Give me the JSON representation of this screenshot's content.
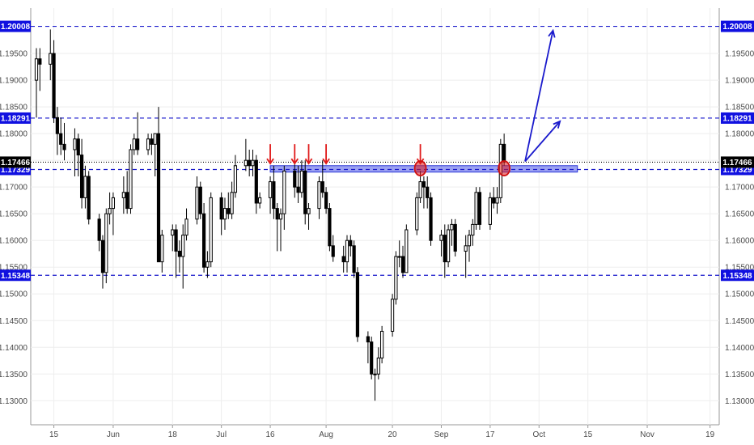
{
  "chart_data": {
    "type": "candlestick",
    "title": "",
    "y_range": [
      1.1255,
      1.2035
    ],
    "x_range_days": [
      "2018-05-10",
      "2018-11-20"
    ],
    "y_ticks": [
      "1.13000",
      "1.13500",
      "1.14000",
      "1.14500",
      "1.15000",
      "1.15500",
      "1.16000",
      "1.16500",
      "1.17000",
      "1.17500",
      "1.18000",
      "1.18500",
      "1.19000",
      "1.19500"
    ],
    "x_ticks": [
      {
        "label": "15",
        "date": "2018-05-15"
      },
      {
        "label": "Jun",
        "date": "2018-06-01"
      },
      {
        "label": "18",
        "date": "2018-06-18"
      },
      {
        "label": "Jul",
        "date": "2018-07-02"
      },
      {
        "label": "16",
        "date": "2018-07-16"
      },
      {
        "label": "Aug",
        "date": "2018-08-01"
      },
      {
        "label": "20",
        "date": "2018-08-20"
      },
      {
        "label": "Sep",
        "date": "2018-09-03"
      },
      {
        "label": "17",
        "date": "2018-09-17"
      },
      {
        "label": "Oct",
        "date": "2018-10-01"
      },
      {
        "label": "15",
        "date": "2018-10-15"
      },
      {
        "label": "Nov",
        "date": "2018-11-01"
      },
      {
        "label": "19",
        "date": "2018-11-19"
      }
    ],
    "levels": [
      {
        "price": 1.20008,
        "label": "1.20008",
        "style": "dashed",
        "color": "#1a1acc"
      },
      {
        "price": 1.18291,
        "label": "1.18291",
        "style": "dashed",
        "color": "#1a1acc"
      },
      {
        "price": 1.17329,
        "label": "1.17329",
        "style": "dashed",
        "color": "#1a1acc"
      },
      {
        "price": 1.15348,
        "label": "1.15348",
        "style": "dashed",
        "color": "#1a1acc"
      },
      {
        "price": 1.17466,
        "label": "1.17466",
        "style": "dotted",
        "color": "#000000",
        "current": true
      }
    ],
    "zone": {
      "start": "2018-07-16",
      "end": "2018-10-12",
      "low": 1.1728,
      "high": 1.174,
      "color": "#4a55e8"
    },
    "annotations": {
      "red_arrows_down": [
        "2018-07-16",
        "2018-07-23",
        "2018-07-27",
        "2018-08-01",
        "2018-08-28"
      ],
      "red_circles": [
        {
          "date": "2018-08-28",
          "price": 1.1735
        },
        {
          "date": "2018-09-21",
          "price": 1.1735
        }
      ],
      "blue_arrows": [
        {
          "from": {
            "date": "2018-09-27",
            "price": 1.1748
          },
          "to": {
            "date": "2018-10-05",
            "price": 1.1993
          }
        },
        {
          "from": {
            "date": "2018-09-27",
            "price": 1.1748
          },
          "to": {
            "date": "2018-10-07",
            "price": 1.1823
          }
        }
      ]
    },
    "candles": [
      {
        "date": "2018-05-10",
        "o": 1.19,
        "h": 1.196,
        "l": 1.183,
        "c": 1.194
      },
      {
        "date": "2018-05-11",
        "o": 1.194,
        "h": 1.196,
        "l": 1.188,
        "c": 1.193
      },
      {
        "date": "2018-05-14",
        "o": 1.193,
        "h": 1.1995,
        "l": 1.19,
        "c": 1.195
      },
      {
        "date": "2018-05-15",
        "o": 1.195,
        "h": 1.1975,
        "l": 1.182,
        "c": 1.183
      },
      {
        "date": "2018-05-16",
        "o": 1.183,
        "h": 1.185,
        "l": 1.176,
        "c": 1.18
      },
      {
        "date": "2018-05-17",
        "o": 1.18,
        "h": 1.183,
        "l": 1.176,
        "c": 1.178
      },
      {
        "date": "2018-05-18",
        "o": 1.178,
        "h": 1.182,
        "l": 1.175,
        "c": 1.177
      },
      {
        "date": "2018-05-21",
        "o": 1.177,
        "h": 1.181,
        "l": 1.172,
        "c": 1.179
      },
      {
        "date": "2018-05-22",
        "o": 1.179,
        "h": 1.18,
        "l": 1.172,
        "c": 1.176
      },
      {
        "date": "2018-05-23",
        "o": 1.176,
        "h": 1.179,
        "l": 1.166,
        "c": 1.168
      },
      {
        "date": "2018-05-24",
        "o": 1.168,
        "h": 1.174,
        "l": 1.166,
        "c": 1.172
      },
      {
        "date": "2018-05-25",
        "o": 1.172,
        "h": 1.173,
        "l": 1.163,
        "c": 1.164
      },
      {
        "date": "2018-05-28",
        "o": 1.164,
        "h": 1.165,
        "l": 1.158,
        "c": 1.16
      },
      {
        "date": "2018-05-29",
        "o": 1.16,
        "h": 1.161,
        "l": 1.151,
        "c": 1.154
      },
      {
        "date": "2018-05-30",
        "o": 1.154,
        "h": 1.166,
        "l": 1.152,
        "c": 1.165
      },
      {
        "date": "2018-05-31",
        "o": 1.165,
        "h": 1.169,
        "l": 1.163,
        "c": 1.166
      },
      {
        "date": "2018-06-01",
        "o": 1.166,
        "h": 1.169,
        "l": 1.161,
        "c": 1.168
      },
      {
        "date": "2018-06-04",
        "o": 1.168,
        "h": 1.172,
        "l": 1.165,
        "c": 1.169
      },
      {
        "date": "2018-06-05",
        "o": 1.169,
        "h": 1.173,
        "l": 1.165,
        "c": 1.166
      },
      {
        "date": "2018-06-06",
        "o": 1.166,
        "h": 1.178,
        "l": 1.165,
        "c": 1.177
      },
      {
        "date": "2018-06-07",
        "o": 1.177,
        "h": 1.18,
        "l": 1.176,
        "c": 1.179
      },
      {
        "date": "2018-06-08",
        "o": 1.179,
        "h": 1.184,
        "l": 1.176,
        "c": 1.177
      },
      {
        "date": "2018-06-11",
        "o": 1.177,
        "h": 1.18,
        "l": 1.176,
        "c": 1.179
      },
      {
        "date": "2018-06-12",
        "o": 1.179,
        "h": 1.18,
        "l": 1.176,
        "c": 1.178
      },
      {
        "date": "2018-06-13",
        "o": 1.178,
        "h": 1.18,
        "l": 1.172,
        "c": 1.18
      },
      {
        "date": "2018-06-14",
        "o": 1.18,
        "h": 1.185,
        "l": 1.156,
        "c": 1.156
      },
      {
        "date": "2018-06-15",
        "o": 1.156,
        "h": 1.162,
        "l": 1.154,
        "c": 1.161
      },
      {
        "date": "2018-06-18",
        "o": 1.161,
        "h": 1.163,
        "l": 1.158,
        "c": 1.162
      },
      {
        "date": "2018-06-19",
        "o": 1.162,
        "h": 1.163,
        "l": 1.153,
        "c": 1.158
      },
      {
        "date": "2018-06-20",
        "o": 1.158,
        "h": 1.16,
        "l": 1.154,
        "c": 1.157
      },
      {
        "date": "2018-06-21",
        "o": 1.157,
        "h": 1.163,
        "l": 1.151,
        "c": 1.161
      },
      {
        "date": "2018-06-22",
        "o": 1.161,
        "h": 1.166,
        "l": 1.16,
        "c": 1.164
      },
      {
        "date": "2018-06-25",
        "o": 1.164,
        "h": 1.172,
        "l": 1.163,
        "c": 1.17
      },
      {
        "date": "2018-06-26",
        "o": 1.17,
        "h": 1.171,
        "l": 1.164,
        "c": 1.165
      },
      {
        "date": "2018-06-27",
        "o": 1.165,
        "h": 1.167,
        "l": 1.154,
        "c": 1.155
      },
      {
        "date": "2018-06-28",
        "o": 1.155,
        "h": 1.158,
        "l": 1.153,
        "c": 1.156
      },
      {
        "date": "2018-06-29",
        "o": 1.156,
        "h": 1.169,
        "l": 1.155,
        "c": 1.168
      },
      {
        "date": "2018-07-02",
        "o": 1.168,
        "h": 1.169,
        "l": 1.161,
        "c": 1.164
      },
      {
        "date": "2018-07-03",
        "o": 1.164,
        "h": 1.168,
        "l": 1.162,
        "c": 1.166
      },
      {
        "date": "2018-07-04",
        "o": 1.166,
        "h": 1.169,
        "l": 1.164,
        "c": 1.165
      },
      {
        "date": "2018-07-05",
        "o": 1.165,
        "h": 1.171,
        "l": 1.164,
        "c": 1.169
      },
      {
        "date": "2018-07-06",
        "o": 1.169,
        "h": 1.176,
        "l": 1.168,
        "c": 1.174
      },
      {
        "date": "2018-07-09",
        "o": 1.174,
        "h": 1.179,
        "l": 1.173,
        "c": 1.175
      },
      {
        "date": "2018-07-10",
        "o": 1.175,
        "h": 1.177,
        "l": 1.172,
        "c": 1.174
      },
      {
        "date": "2018-07-11",
        "o": 1.174,
        "h": 1.177,
        "l": 1.172,
        "c": 1.175
      },
      {
        "date": "2018-07-12",
        "o": 1.175,
        "h": 1.176,
        "l": 1.165,
        "c": 1.167
      },
      {
        "date": "2018-07-13",
        "o": 1.167,
        "h": 1.169,
        "l": 1.166,
        "c": 1.168
      },
      {
        "date": "2018-07-16",
        "o": 1.168,
        "h": 1.172,
        "l": 1.165,
        "c": 1.171
      },
      {
        "date": "2018-07-17",
        "o": 1.171,
        "h": 1.174,
        "l": 1.164,
        "c": 1.166
      },
      {
        "date": "2018-07-18",
        "o": 1.166,
        "h": 1.167,
        "l": 1.158,
        "c": 1.164
      },
      {
        "date": "2018-07-19",
        "o": 1.164,
        "h": 1.166,
        "l": 1.158,
        "c": 1.165
      },
      {
        "date": "2018-07-20",
        "o": 1.165,
        "h": 1.174,
        "l": 1.162,
        "c": 1.173
      },
      {
        "date": "2018-07-23",
        "o": 1.173,
        "h": 1.175,
        "l": 1.168,
        "c": 1.17
      },
      {
        "date": "2018-07-24",
        "o": 1.17,
        "h": 1.174,
        "l": 1.167,
        "c": 1.169
      },
      {
        "date": "2018-07-25",
        "o": 1.169,
        "h": 1.175,
        "l": 1.168,
        "c": 1.173
      },
      {
        "date": "2018-07-26",
        "o": 1.173,
        "h": 1.175,
        "l": 1.163,
        "c": 1.165
      },
      {
        "date": "2018-07-27",
        "o": 1.165,
        "h": 1.167,
        "l": 1.162,
        "c": 1.166
      },
      {
        "date": "2018-07-30",
        "o": 1.166,
        "h": 1.172,
        "l": 1.164,
        "c": 1.171
      },
      {
        "date": "2018-07-31",
        "o": 1.171,
        "h": 1.175,
        "l": 1.168,
        "c": 1.169
      },
      {
        "date": "2018-08-01",
        "o": 1.169,
        "h": 1.17,
        "l": 1.165,
        "c": 1.166
      },
      {
        "date": "2018-08-02",
        "o": 1.166,
        "h": 1.167,
        "l": 1.158,
        "c": 1.159
      },
      {
        "date": "2018-08-03",
        "o": 1.159,
        "h": 1.161,
        "l": 1.156,
        "c": 1.157
      },
      {
        "date": "2018-08-06",
        "o": 1.157,
        "h": 1.159,
        "l": 1.154,
        "c": 1.156
      },
      {
        "date": "2018-08-07",
        "o": 1.156,
        "h": 1.161,
        "l": 1.154,
        "c": 1.16
      },
      {
        "date": "2018-08-08",
        "o": 1.16,
        "h": 1.161,
        "l": 1.157,
        "c": 1.159
      },
      {
        "date": "2018-08-09",
        "o": 1.159,
        "h": 1.16,
        "l": 1.153,
        "c": 1.154
      },
      {
        "date": "2018-08-10",
        "o": 1.154,
        "h": 1.155,
        "l": 1.141,
        "c": 1.142
      },
      {
        "date": "2018-08-13",
        "o": 1.142,
        "h": 1.143,
        "l": 1.137,
        "c": 1.141
      },
      {
        "date": "2018-08-14",
        "o": 1.141,
        "h": 1.142,
        "l": 1.134,
        "c": 1.135
      },
      {
        "date": "2018-08-15",
        "o": 1.135,
        "h": 1.136,
        "l": 1.13,
        "c": 1.135
      },
      {
        "date": "2018-08-16",
        "o": 1.135,
        "h": 1.14,
        "l": 1.134,
        "c": 1.138
      },
      {
        "date": "2018-08-17",
        "o": 1.138,
        "h": 1.144,
        "l": 1.137,
        "c": 1.143
      },
      {
        "date": "2018-08-20",
        "o": 1.143,
        "h": 1.15,
        "l": 1.142,
        "c": 1.149
      },
      {
        "date": "2018-08-21",
        "o": 1.149,
        "h": 1.158,
        "l": 1.148,
        "c": 1.157
      },
      {
        "date": "2018-08-22",
        "o": 1.157,
        "h": 1.16,
        "l": 1.155,
        "c": 1.157
      },
      {
        "date": "2018-08-23",
        "o": 1.157,
        "h": 1.159,
        "l": 1.153,
        "c": 1.154
      },
      {
        "date": "2018-08-24",
        "o": 1.154,
        "h": 1.163,
        "l": 1.154,
        "c": 1.162
      },
      {
        "date": "2018-08-27",
        "o": 1.162,
        "h": 1.169,
        "l": 1.161,
        "c": 1.168
      },
      {
        "date": "2018-08-28",
        "o": 1.168,
        "h": 1.173,
        "l": 1.167,
        "c": 1.171
      },
      {
        "date": "2018-08-29",
        "o": 1.171,
        "h": 1.172,
        "l": 1.166,
        "c": 1.17
      },
      {
        "date": "2018-08-30",
        "o": 1.17,
        "h": 1.172,
        "l": 1.166,
        "c": 1.168
      },
      {
        "date": "2018-08-31",
        "o": 1.168,
        "h": 1.169,
        "l": 1.159,
        "c": 1.16
      },
      {
        "date": "2018-09-03",
        "o": 1.16,
        "h": 1.162,
        "l": 1.157,
        "c": 1.161
      },
      {
        "date": "2018-09-04",
        "o": 1.161,
        "h": 1.163,
        "l": 1.153,
        "c": 1.156
      },
      {
        "date": "2018-09-05",
        "o": 1.156,
        "h": 1.163,
        "l": 1.155,
        "c": 1.162
      },
      {
        "date": "2018-09-06",
        "o": 1.162,
        "h": 1.164,
        "l": 1.159,
        "c": 1.163
      },
      {
        "date": "2018-09-07",
        "o": 1.163,
        "h": 1.164,
        "l": 1.157,
        "c": 1.158
      },
      {
        "date": "2018-09-10",
        "o": 1.158,
        "h": 1.161,
        "l": 1.153,
        "c": 1.159
      },
      {
        "date": "2018-09-11",
        "o": 1.159,
        "h": 1.162,
        "l": 1.156,
        "c": 1.161
      },
      {
        "date": "2018-09-12",
        "o": 1.161,
        "h": 1.164,
        "l": 1.159,
        "c": 1.163
      },
      {
        "date": "2018-09-13",
        "o": 1.163,
        "h": 1.17,
        "l": 1.162,
        "c": 1.169
      },
      {
        "date": "2018-09-14",
        "o": 1.169,
        "h": 1.17,
        "l": 1.162,
        "c": 1.163
      },
      {
        "date": "2018-09-17",
        "o": 1.163,
        "h": 1.169,
        "l": 1.162,
        "c": 1.168
      },
      {
        "date": "2018-09-18",
        "o": 1.168,
        "h": 1.17,
        "l": 1.166,
        "c": 1.167
      },
      {
        "date": "2018-09-19",
        "o": 1.167,
        "h": 1.17,
        "l": 1.165,
        "c": 1.168
      },
      {
        "date": "2018-09-20",
        "o": 1.168,
        "h": 1.179,
        "l": 1.167,
        "c": 1.178
      },
      {
        "date": "2018-09-21",
        "o": 1.178,
        "h": 1.18,
        "l": 1.174,
        "c": 1.1747
      }
    ]
  }
}
